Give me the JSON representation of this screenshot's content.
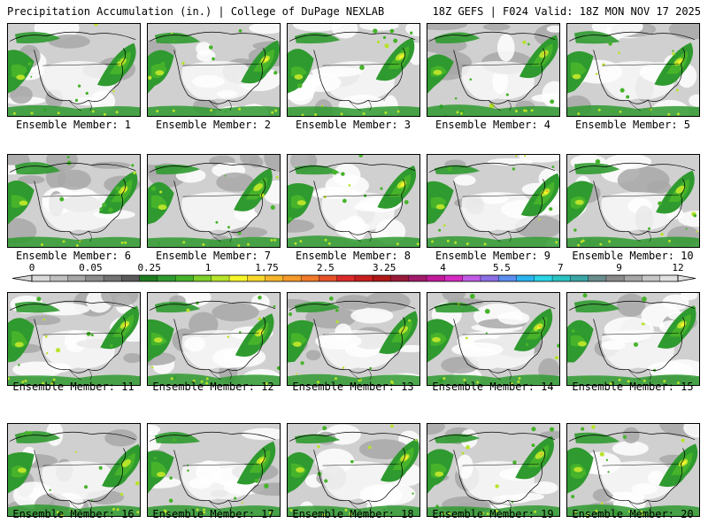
{
  "header": {
    "left": "Precipitation Accumulation (in.) | College of DuPage NEXLAB",
    "right": "18Z GEFS | F024 Valid: 18Z MON NOV 17 2025"
  },
  "member_prefix": "Ensemble Member: ",
  "members": [
    1,
    2,
    3,
    4,
    5,
    6,
    7,
    8,
    9,
    10,
    11,
    12,
    13,
    14,
    15,
    16,
    17,
    18,
    19,
    20
  ],
  "colorbar": {
    "labels": [
      "0",
      "0.05",
      "0.25",
      "1",
      "1.75",
      "2.5",
      "3.25",
      "4",
      "5.5",
      "7",
      "9",
      "12"
    ],
    "colors": [
      "#d9d9d9",
      "#bfbfbf",
      "#a6a6a6",
      "#8c8c8c",
      "#737373",
      "#5a5a5a",
      "#1e7b1e",
      "#2f9a2f",
      "#46b32a",
      "#7fcf2a",
      "#b7e32a",
      "#f5f52a",
      "#f7d82a",
      "#f5b52a",
      "#f59a2a",
      "#f07a2a",
      "#e6522a",
      "#db2a2a",
      "#c81e1e",
      "#b01818",
      "#9a1a3a",
      "#a31a6a",
      "#c21a9a",
      "#d52ac2",
      "#c25ae6",
      "#8c6ee6",
      "#5a8ef0",
      "#2ab4f0",
      "#2ad6e6",
      "#2ac2c2",
      "#3aa6a6",
      "#6a8c8c",
      "#8a8a8a",
      "#a6a6a6",
      "#c6c6c6",
      "#e0e0e0"
    ]
  },
  "map_colors": {
    "land": "#ffffff",
    "light_gray": "#d0d0d0",
    "mid_gray": "#a8a8a8",
    "green_dark": "#2f9a2f",
    "green": "#46b32a",
    "lime": "#b7e32a",
    "yellow": "#f5f52a",
    "orange": "#f5a52a",
    "outline": "#000000"
  }
}
